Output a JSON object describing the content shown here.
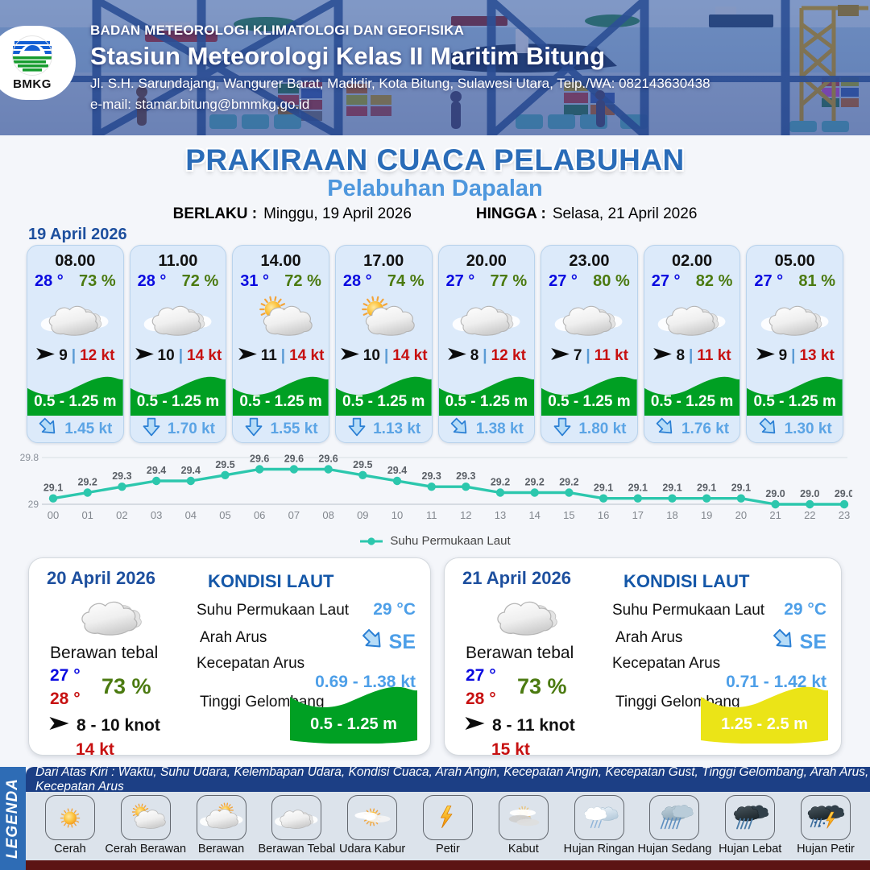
{
  "header": {
    "agency": "BADAN METEOROLOGI KLIMATOLOGI DAN GEOFISIKA",
    "station": "Stasiun Meteorologi Kelas II Maritim Bitung",
    "address": "Jl. S.H. Sarundajang, Wangurer Barat, Madidir, Kota Bitung, Sulawesi Utara, Telp./WA: 082143630438",
    "email": "e-mail: stamar.bitung@bmmkg.go.id",
    "logo_text": "BMKG"
  },
  "title": "PRAKIRAAN CUACA PELABUHAN",
  "subtitle": "Pelabuhan Dapalan",
  "validity": {
    "from_label": "BERLAKU :",
    "from_value": "Minggu, 19 April 2026",
    "to_label": "HINGGA :",
    "to_value": "Selasa, 21 April 2026"
  },
  "forecast": {
    "date": "19 April 2026",
    "cards": [
      {
        "time": "08.00",
        "temp": "28 °",
        "humidity": "73 %",
        "icon": "berawan-tebal",
        "wind_speed": "9",
        "wind_divider": "|",
        "gust": "12 kt",
        "wave": "0.5 - 1.25 m",
        "current_dir": "se",
        "current": "1.45 kt"
      },
      {
        "time": "11.00",
        "temp": "28 °",
        "humidity": "72 %",
        "icon": "berawan-tebal",
        "wind_speed": "10",
        "wind_divider": "|",
        "gust": "14 kt",
        "wave": "0.5 - 1.25 m",
        "current_dir": "down",
        "current": "1.70 kt"
      },
      {
        "time": "14.00",
        "temp": "31 °",
        "humidity": "72 %",
        "icon": "cerah-berawan",
        "wind_speed": "11",
        "wind_divider": "|",
        "gust": "14 kt",
        "wave": "0.5 - 1.25 m",
        "current_dir": "down",
        "current": "1.55 kt"
      },
      {
        "time": "17.00",
        "temp": "28 °",
        "humidity": "74 %",
        "icon": "cerah-berawan",
        "wind_speed": "10",
        "wind_divider": "|",
        "gust": "14 kt",
        "wave": "0.5 - 1.25 m",
        "current_dir": "down",
        "current": "1.13 kt"
      },
      {
        "time": "20.00",
        "temp": "27 °",
        "humidity": "77 %",
        "icon": "berawan-tebal",
        "wind_speed": "8",
        "wind_divider": "|",
        "gust": "12 kt",
        "wave": "0.5 - 1.25 m",
        "current_dir": "se",
        "current": "1.38 kt"
      },
      {
        "time": "23.00",
        "temp": "27 °",
        "humidity": "80 %",
        "icon": "berawan-tebal",
        "wind_speed": "7",
        "wind_divider": "|",
        "gust": "11 kt",
        "wave": "0.5 - 1.25 m",
        "current_dir": "down",
        "current": "1.80 kt"
      },
      {
        "time": "02.00",
        "temp": "27 °",
        "humidity": "82 %",
        "icon": "berawan-tebal",
        "wind_speed": "8",
        "wind_divider": "|",
        "gust": "11 kt",
        "wave": "0.5 - 1.25 m",
        "current_dir": "se",
        "current": "1.76 kt"
      },
      {
        "time": "05.00",
        "temp": "27 °",
        "humidity": "81 %",
        "icon": "berawan-tebal",
        "wind_speed": "9",
        "wind_divider": "|",
        "gust": "13 kt",
        "wave": "0.5 - 1.25 m",
        "current_dir": "se",
        "current": "1.30 kt"
      }
    ]
  },
  "chart_data": {
    "type": "line",
    "series_name": "Suhu Permukaan Laut",
    "x": [
      "00",
      "01",
      "02",
      "03",
      "04",
      "05",
      "06",
      "07",
      "08",
      "09",
      "10",
      "11",
      "12",
      "13",
      "14",
      "15",
      "16",
      "17",
      "18",
      "19",
      "20",
      "21",
      "22",
      "23"
    ],
    "values": [
      29.1,
      29.2,
      29.3,
      29.4,
      29.4,
      29.5,
      29.6,
      29.6,
      29.6,
      29.5,
      29.4,
      29.3,
      29.3,
      29.2,
      29.2,
      29.2,
      29.1,
      29.1,
      29.1,
      29.1,
      29.1,
      29.0,
      29.0,
      29.0
    ],
    "ylim": [
      29,
      29.8
    ],
    "yticks": [
      "29",
      "29.8"
    ],
    "xlabel": "",
    "ylabel": "",
    "grid": true,
    "legend_position": "bottom",
    "line_color": "#2cc7ad"
  },
  "daily": [
    {
      "date": "20 April 2026",
      "condition": "Berawan tebal",
      "icon": "berawan-tebal",
      "temp_min": "27 °",
      "temp_max": "28 °",
      "humidity": "73 %",
      "wind": "8 - 10 knot",
      "gust": "14 kt",
      "sea_title": "KONDISI LAUT",
      "sst_label": "Suhu Permukaan Laut",
      "sst": "29 °C",
      "current_dir_label": "Arah Arus",
      "current_dir": "SE",
      "current_speed_label": "Kecepatan Arus",
      "current_speed": "0.69 - 1.38 kt",
      "wave_label": "Tinggi Gelombang",
      "wave": "0.5 - 1.25 m",
      "wave_color": "#00a023"
    },
    {
      "date": "21 April 2026",
      "condition": "Berawan tebal",
      "icon": "berawan-tebal",
      "temp_min": "27 °",
      "temp_max": "28 °",
      "humidity": "73 %",
      "wind": "8 - 11 knot",
      "gust": "15 kt",
      "sea_title": "KONDISI LAUT",
      "sst_label": "Suhu Permukaan Laut",
      "sst": "29 °C",
      "current_dir_label": "Arah Arus",
      "current_dir": "SE",
      "current_speed_label": "Kecepatan Arus",
      "current_speed": "0.71 - 1.42 kt",
      "wave_label": "Tinggi Gelombang",
      "wave": "1.25 - 2.5 m",
      "wave_color": "#ebe417"
    }
  ],
  "legend": {
    "side_label": "LEGENDA",
    "caption": "Dari Atas Kiri : Waktu, Suhu Udara, Kelembapan Udara, Kondisi Cuaca, Arah Angin, Kecepatan Angin, Kecepatan Gust, Tinggi Gelombang, Arah Arus, Kecepatan Arus",
    "items": [
      {
        "label": "Cerah",
        "icon": "cerah"
      },
      {
        "label": "Cerah Berawan",
        "icon": "cerah-berawan"
      },
      {
        "label": "Berawan",
        "icon": "berawan"
      },
      {
        "label": "Berawan Tebal",
        "icon": "berawan-tebal"
      },
      {
        "label": "Udara Kabur",
        "icon": "udara-kabur"
      },
      {
        "label": "Petir",
        "icon": "petir"
      },
      {
        "label": "Kabut",
        "icon": "kabut"
      },
      {
        "label": "Hujan Ringan",
        "icon": "hujan-ringan"
      },
      {
        "label": "Hujan Sedang",
        "icon": "hujan-sedang"
      },
      {
        "label": "Hujan Lebat",
        "icon": "hujan-lebat"
      },
      {
        "label": "Hujan Petir",
        "icon": "hujan-petir"
      }
    ]
  },
  "colors": {
    "green_wave": "#00a023",
    "yellow_wave": "#ebe417",
    "chart_line": "#2cc7ad",
    "temp_blue": "#0a0ae0",
    "humidity_green": "#4b7a10",
    "gust_red": "#c71111",
    "current_blue": "#5ba4e5",
    "title_blue": "#2a6cb8",
    "subtitle_blue": "#4e97dd"
  }
}
